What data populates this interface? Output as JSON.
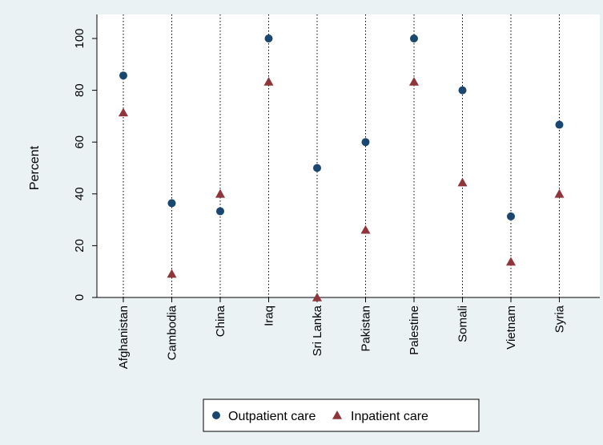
{
  "chart_data": {
    "type": "scatter",
    "categories": [
      "Afghanistan",
      "Cambodia",
      "China",
      "Iraq",
      "Sri Lanka",
      "Pakistan",
      "Palestine",
      "Somali",
      "Vietnam",
      "Syria"
    ],
    "series": [
      {
        "name": "Outpatient care",
        "marker": "circle",
        "color": "#1a476f",
        "values": [
          85.7,
          36.4,
          33.3,
          100,
          50,
          60,
          100,
          80,
          31.3,
          66.7
        ]
      },
      {
        "name": "Inpatient care",
        "marker": "triangle",
        "color": "#90353b",
        "values": [
          71.4,
          9.1,
          40,
          83.3,
          0,
          26.1,
          83.3,
          44.4,
          13.8,
          40
        ]
      }
    ],
    "ylabel": "Percent",
    "xlabel": "",
    "ylim": [
      0,
      100
    ],
    "yticks": [
      0,
      20,
      40,
      60,
      80,
      100
    ],
    "category_gridlines": true,
    "gridline_style": "dotted",
    "legend_position": "bottom",
    "background_color": "#eaf2f3",
    "plot_background_color": "#ffffff"
  }
}
